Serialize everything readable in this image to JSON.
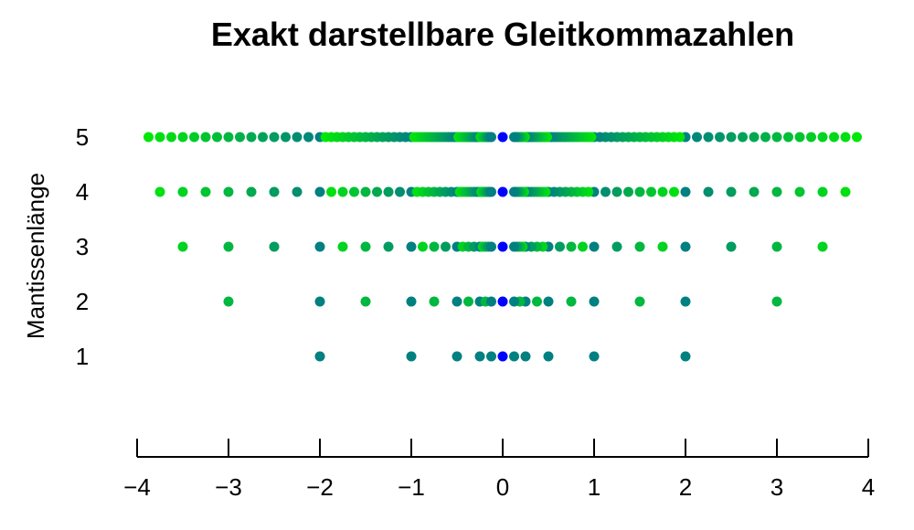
{
  "chart_data": {
    "type": "scatter",
    "title": "Exakt darstellbare Gleitkommazahlen",
    "xlabel": "",
    "ylabel": "Mantissenlänge",
    "xlim": [
      -4,
      4
    ],
    "ylim": [
      0,
      6
    ],
    "x_ticks": [
      -4,
      -3,
      -2,
      -1,
      0,
      1,
      2,
      3,
      4
    ],
    "x_tick_labels": [
      "−4",
      "−3",
      "−2",
      "−1",
      "0",
      "1",
      "2",
      "3",
      "4"
    ],
    "y_ticks": [
      1,
      2,
      3,
      4,
      5
    ],
    "y_tick_labels": [
      "1",
      "2",
      "3",
      "4",
      "5"
    ],
    "mantissa_lengths": [
      1,
      2,
      3,
      4,
      5
    ],
    "exponent_range": [
      -3,
      1
    ],
    "grid": false,
    "legend": "none",
    "colors": {
      "near_zero": "#0000ff",
      "middle": "#008080",
      "far": "#00ee00"
    }
  }
}
